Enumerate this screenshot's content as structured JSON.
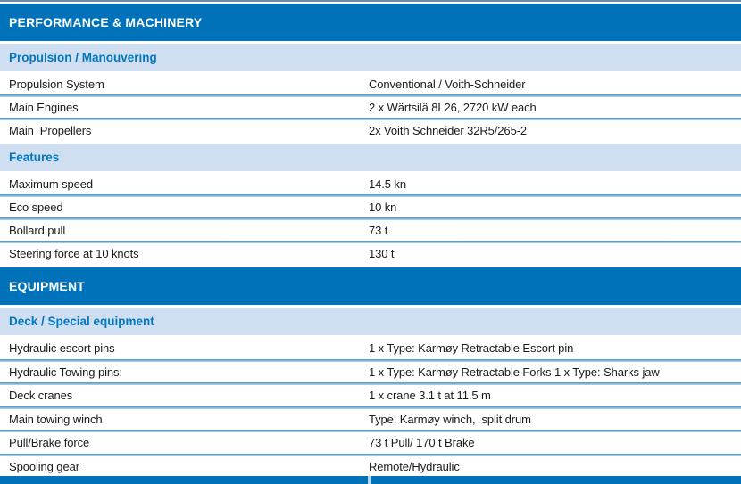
{
  "colors": {
    "section_header_bg": "#0072ba",
    "group_header_bg": "#cfdff1",
    "group_header_text": "#0078c2",
    "row_text": "#1b1b1b",
    "row_divider": "#4e93c3",
    "bottom_bar": "#0072ba"
  },
  "table": {
    "sections": [
      {
        "title": "PERFORMANCE & MACHINERY",
        "groups": [
          {
            "subtitle": "Propulsion / Manouvering",
            "rows": [
              {
                "label": "Propulsion System",
                "value": "Conventional / Voith-Schneider"
              },
              {
                "label": "Main Engines",
                "value": "2 x Wärtsilä 8L26, 2720 kW each"
              },
              {
                "label": "Main  Propellers",
                "value": "2x Voith Schneider 32R5/265-2"
              }
            ]
          },
          {
            "subtitle": "Features",
            "rows": [
              {
                "label": "Maximum speed",
                "value": "14.5 kn"
              },
              {
                "label": "Eco speed",
                "value": "10 kn"
              },
              {
                "label": "Bollard pull",
                "value": "73 t"
              },
              {
                "label": "Steering force at 10 knots",
                "value": "130 t"
              }
            ]
          }
        ]
      },
      {
        "title": "EQUIPMENT",
        "groups": [
          {
            "subtitle": "Deck / Special equipment",
            "rows": [
              {
                "label": "Hydraulic escort pins",
                "value": "1 x Type: Karmøy Retractable Escort pin"
              },
              {
                "label": "Hydraulic Towing pins:",
                "value": "1 x Type: Karmøy Retractable Forks 1 x Type: Sharks jaw"
              },
              {
                "label": "Deck cranes",
                "value": "1 x crane 3.1 t at 11.5 m"
              },
              {
                "label": "Main towing winch",
                "value": "Type: Karmøy winch,  split drum"
              },
              {
                "label": "Pull/Brake force",
                "value": "73 t Pull/ 170 t Brake"
              },
              {
                "label": "Spooling gear",
                "value": "Remote/Hydraulic"
              }
            ]
          }
        ]
      }
    ]
  }
}
